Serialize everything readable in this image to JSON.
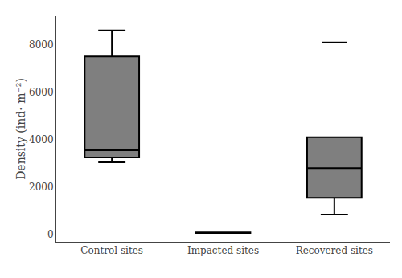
{
  "chart_data": {
    "type": "box",
    "categories": [
      "Control sites",
      "Impacted sites",
      "Recovered sites"
    ],
    "whislo": [
      3050,
      75,
      850
    ],
    "q1": [
      3250,
      75,
      1550
    ],
    "median": [
      3550,
      100,
      2800
    ],
    "q3": [
      7500,
      100,
      4100
    ],
    "whishi": [
      8600,
      100,
      4100
    ],
    "fliers": [
      [],
      [],
      [
        8100
      ]
    ],
    "ylabel": "Density (ind· m⁻²)",
    "ylim": [
      -300,
      9200
    ],
    "yticks": [
      0,
      2000,
      4000,
      6000,
      8000
    ],
    "color": "#000000",
    "grid": false
  }
}
